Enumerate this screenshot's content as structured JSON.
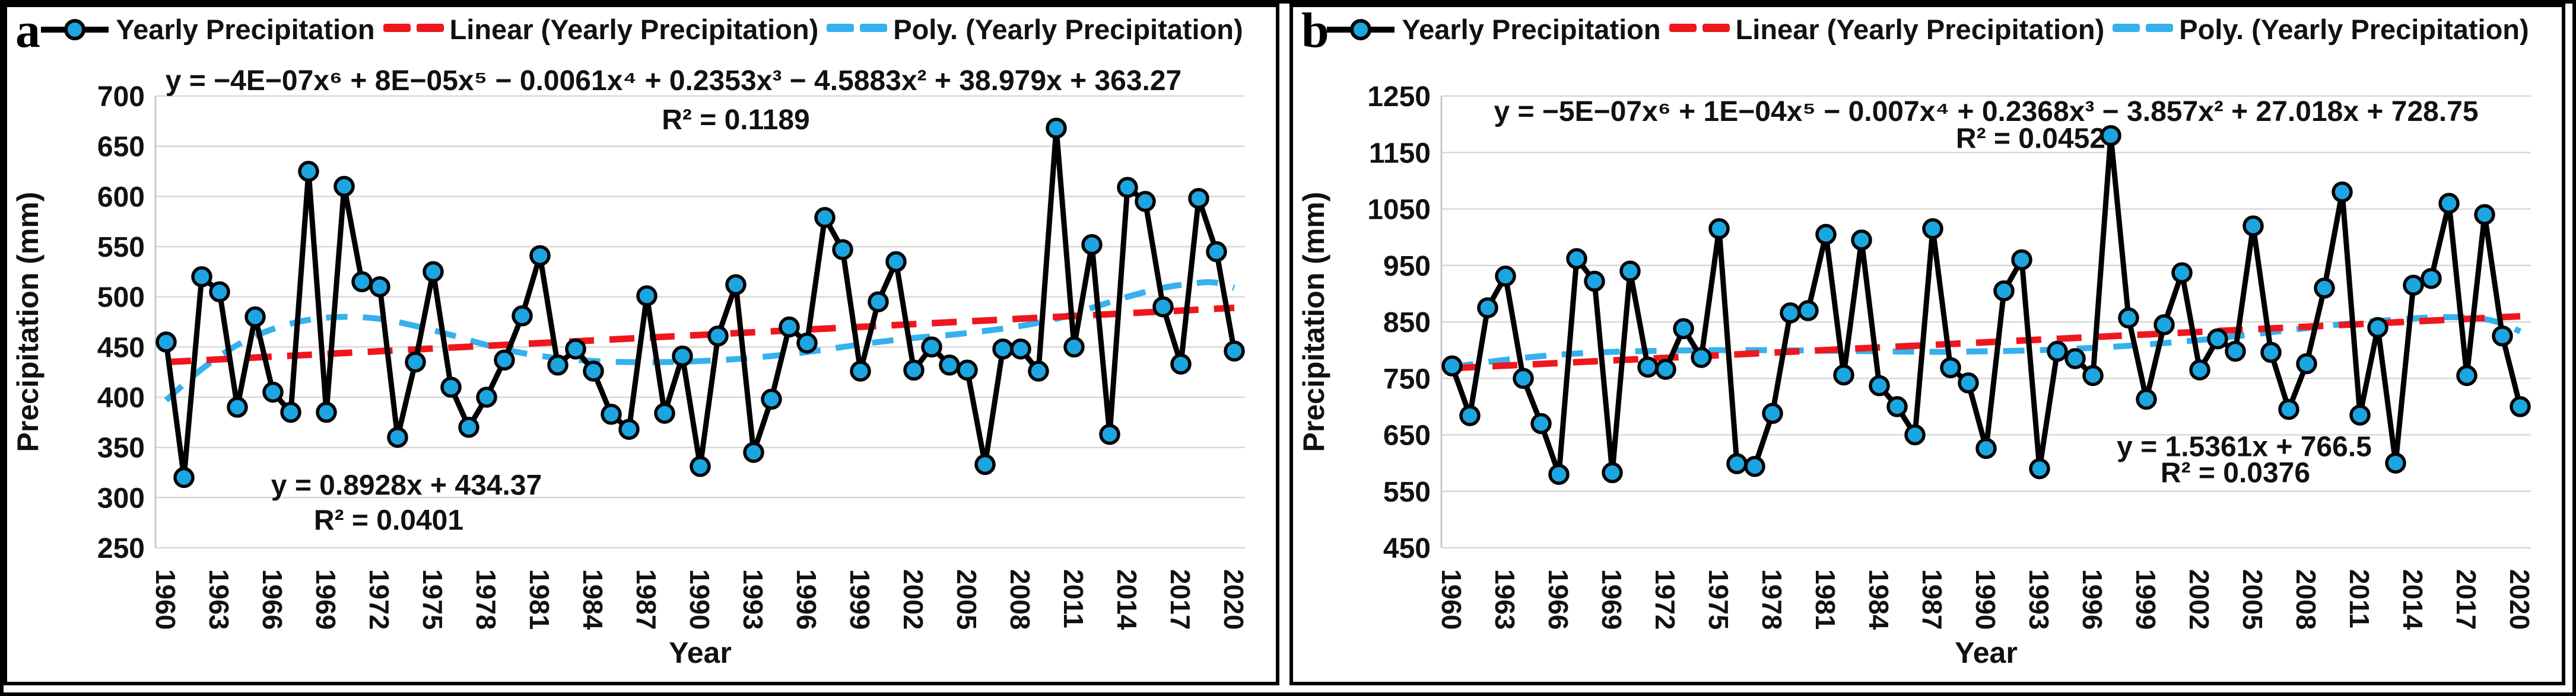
{
  "figure": {
    "panels": [
      {
        "label": "a"
      },
      {
        "label": "b"
      }
    ]
  },
  "legend": {
    "items": [
      {
        "label": "Yearly Precipitation",
        "icon": "line-circle-marker-icon"
      },
      {
        "label": "Linear (Yearly Precipitation)",
        "icon": "red-dash-icon"
      },
      {
        "label": "Poly. (Yearly Precipitation)",
        "icon": "cyan-dash-icon"
      }
    ]
  },
  "colors": {
    "series_line": "#000000",
    "marker_fill": "#1CA5E0",
    "linear_trend": "#EF161E",
    "poly_trend": "#35B1ED",
    "gridline": "#D8D8D8",
    "axis_line": "#C9C9C9",
    "text": "#111111"
  },
  "chart_data": [
    {
      "panel": "a",
      "type": "line",
      "xlabel": "Year",
      "ylabel": "Precipitation (mm)",
      "ylim": [
        250,
        700
      ],
      "ystep": 50,
      "x_start": 1960,
      "x_end": 2020,
      "xtick_labels": [
        "1960",
        "1963",
        "1966",
        "1969",
        "1972",
        "1975",
        "1978",
        "1981",
        "1984",
        "1987",
        "1990",
        "1993",
        "1996",
        "1999",
        "2002",
        "2005",
        "2008",
        "2011",
        "2014",
        "2017",
        "2020"
      ],
      "values": [
        455,
        320,
        520,
        505,
        390,
        480,
        405,
        385,
        625,
        385,
        610,
        515,
        510,
        360,
        435,
        525,
        410,
        370,
        400,
        437,
        481,
        541,
        432,
        448,
        426,
        383,
        368,
        501,
        384,
        441,
        331,
        461,
        512,
        345,
        398,
        470,
        454,
        579,
        547,
        426,
        495,
        535,
        427,
        450,
        432,
        427,
        333,
        448,
        448,
        426,
        668,
        450,
        552,
        363,
        609,
        595,
        490,
        433,
        598,
        545,
        446
      ],
      "linear": {
        "equation": "y = 0.8928x + 434.37",
        "r2": "R² = 0.0401",
        "endpoints": [
          435,
          489
        ],
        "eq_pos": {
          "year": 1973.5,
          "value": 303
        },
        "r2_pos": {
          "year": 1972.5,
          "value": 268
        }
      },
      "poly": {
        "equation": "y = −4E−07x⁶ + 8E−05x⁵ − 0.0061x⁴ + 0.2353x³ − 4.5883x² + 38.979x + 363.27",
        "r2": "R² = 0.1189",
        "control_points": [
          [
            1960,
            397
          ],
          [
            1962,
            428
          ],
          [
            1964,
            452
          ],
          [
            1966,
            468
          ],
          [
            1968,
            477
          ],
          [
            1970,
            480
          ],
          [
            1972,
            478
          ],
          [
            1974,
            471
          ],
          [
            1976,
            462
          ],
          [
            1978,
            452
          ],
          [
            1980,
            444
          ],
          [
            1982,
            439
          ],
          [
            1984,
            436
          ],
          [
            1986,
            435
          ],
          [
            1988,
            435
          ],
          [
            1990,
            436
          ],
          [
            1992,
            438
          ],
          [
            1994,
            441
          ],
          [
            1996,
            445
          ],
          [
            1998,
            450
          ],
          [
            2000,
            455
          ],
          [
            2002,
            459
          ],
          [
            2004,
            462
          ],
          [
            2006,
            466
          ],
          [
            2008,
            471
          ],
          [
            2010,
            478
          ],
          [
            2012,
            489
          ],
          [
            2014,
            500
          ],
          [
            2016,
            509
          ],
          [
            2018,
            514
          ],
          [
            2019,
            514
          ],
          [
            2020,
            509
          ]
        ],
        "eq_pos": {
          "year": 1988.5,
          "value": 706
        },
        "r2_pos": {
          "year": 1992,
          "value": 667
        }
      }
    },
    {
      "panel": "b",
      "type": "line",
      "xlabel": "Year",
      "ylabel": "Precipitation (mm)",
      "ylim": [
        450,
        1250
      ],
      "ystep": 100,
      "x_start": 1960,
      "x_end": 2020,
      "xtick_labels": [
        "1960",
        "1963",
        "1966",
        "1969",
        "1972",
        "1975",
        "1978",
        "1981",
        "1984",
        "1987",
        "1990",
        "1993",
        "1996",
        "1999",
        "2002",
        "2005",
        "2008",
        "2011",
        "2014",
        "2017",
        "2020"
      ],
      "values": [
        772,
        684,
        875,
        931,
        750,
        670,
        580,
        962,
        922,
        583,
        940,
        770,
        766,
        838,
        787,
        1015,
        599,
        594,
        688,
        866,
        870,
        1005,
        756,
        995,
        737,
        700,
        650,
        1015,
        769,
        742,
        626,
        905,
        960,
        590,
        798,
        785,
        755,
        1180,
        857,
        713,
        845,
        937,
        765,
        820,
        798,
        1020,
        796,
        695,
        776,
        910,
        1080,
        685,
        840,
        600,
        915,
        927,
        1060,
        755,
        1040,
        825,
        700
      ],
      "linear": {
        "equation": "y = 1.5361x + 766.5",
        "r2": "R² = 0.0376",
        "endpoints": [
          768,
          860
        ],
        "eq_pos": {
          "year": 2004.5,
          "value": 612
        },
        "r2_pos": {
          "year": 2004,
          "value": 566
        }
      },
      "poly": {
        "equation": "y = −5E−07x⁶ + 1E−04x⁵ − 0.007x⁴ + 0.2368x³ − 3.857x² + 27.018x + 728.75",
        "r2": "R² = 0.0452",
        "control_points": [
          [
            1960,
            770
          ],
          [
            1963,
            783
          ],
          [
            1966,
            792
          ],
          [
            1969,
            797
          ],
          [
            1972,
            799
          ],
          [
            1975,
            800
          ],
          [
            1978,
            800
          ],
          [
            1981,
            799
          ],
          [
            1984,
            798
          ],
          [
            1987,
            797
          ],
          [
            1990,
            798
          ],
          [
            1993,
            800
          ],
          [
            1996,
            804
          ],
          [
            1999,
            810
          ],
          [
            2002,
            818
          ],
          [
            2005,
            828
          ],
          [
            2008,
            839
          ],
          [
            2011,
            849
          ],
          [
            2013,
            854
          ],
          [
            2015,
            858
          ],
          [
            2017,
            858
          ],
          [
            2018,
            855
          ],
          [
            2019,
            847
          ],
          [
            2020,
            833
          ]
        ],
        "eq_pos": {
          "year": 1990,
          "value": 1206
        },
        "r2_pos": {
          "year": 1992.5,
          "value": 1158
        }
      }
    }
  ]
}
